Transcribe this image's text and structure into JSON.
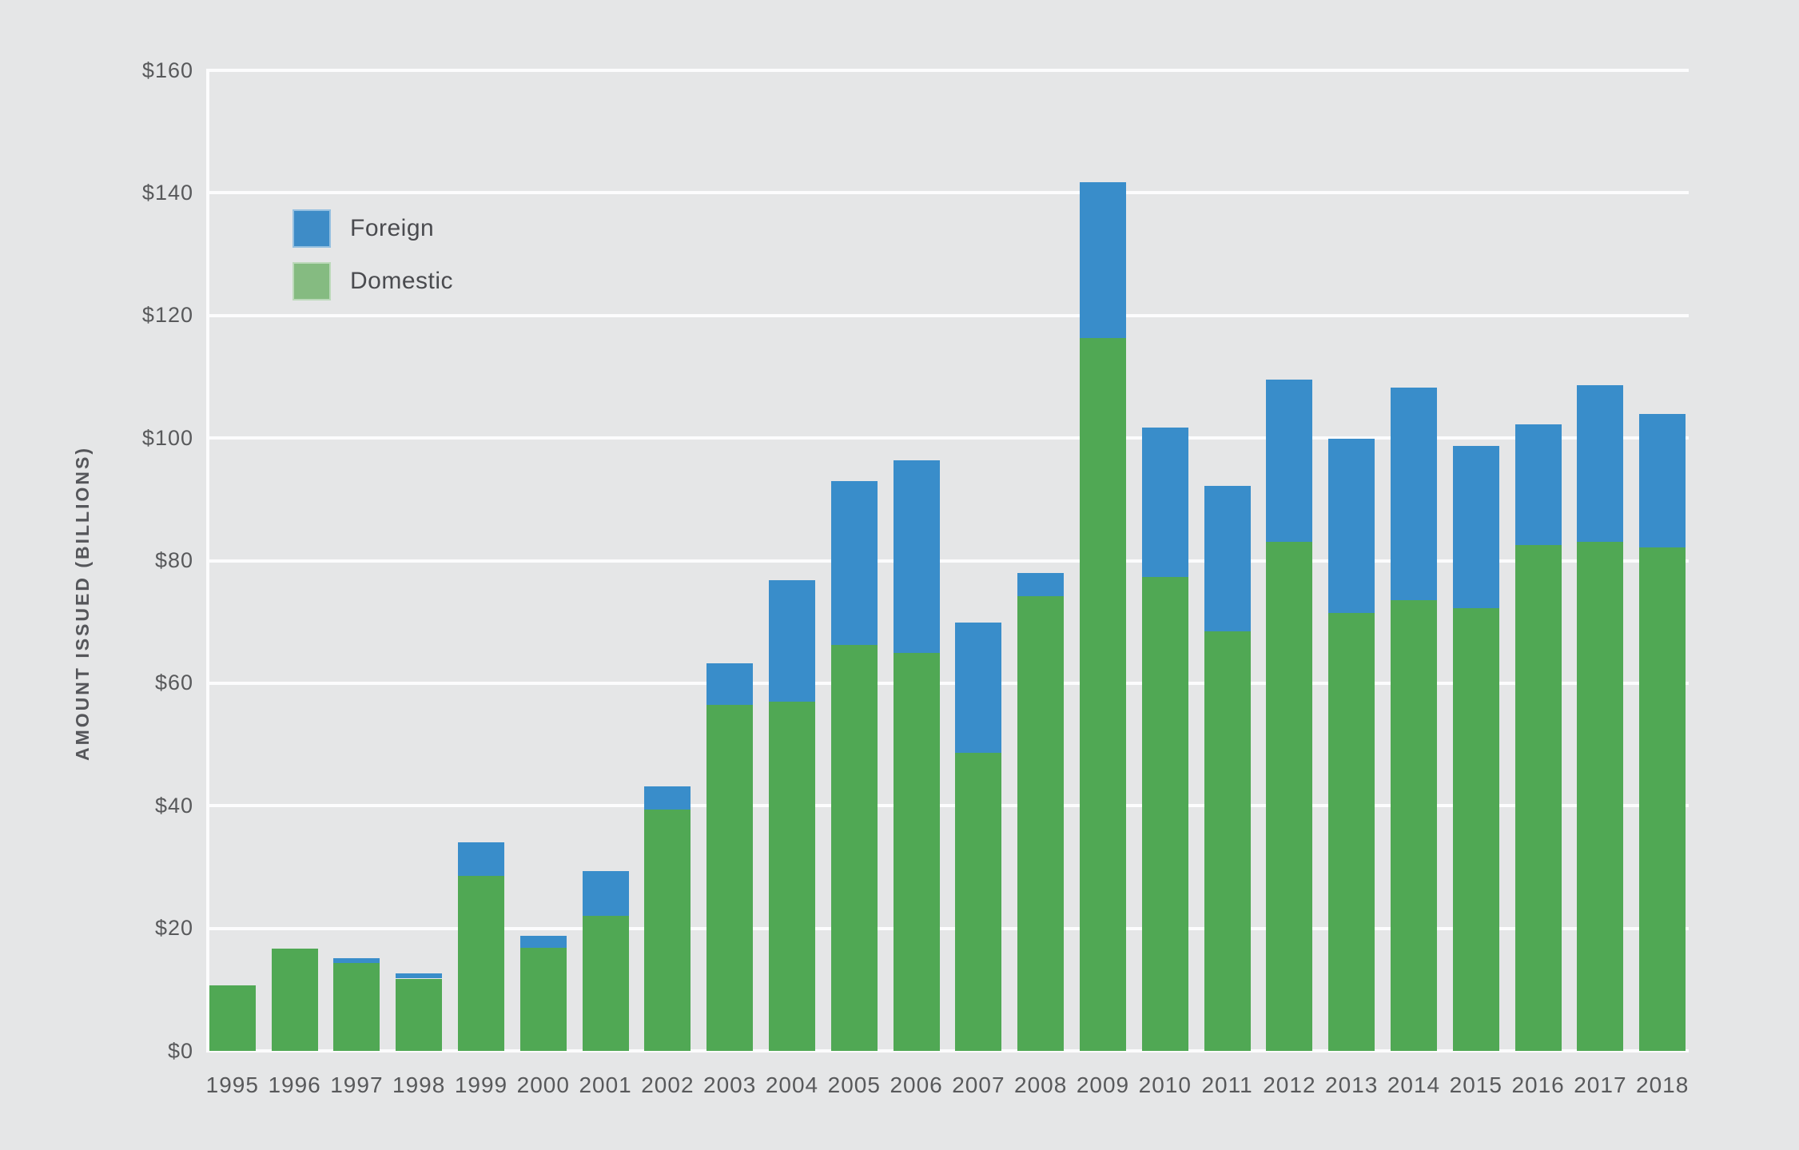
{
  "colors": {
    "background": "#E5E6E7",
    "gridline": "#FCFCFD",
    "text": "#58595B",
    "foreign_bar": "#398DCA",
    "domestic_bar": "#50A854",
    "legend_foreign_swatch": "#3E8CC7",
    "legend_domestic_swatch": "#85BB81"
  },
  "chart_data": {
    "type": "bar",
    "stacked": true,
    "title": "",
    "xlabel": "",
    "ylabel": "AMOUNT ISSUED (BILLIONS)",
    "ylim": [
      0,
      160
    ],
    "ytick_step": 20,
    "ytick_prefix": "$",
    "ytick_labels": [
      "$0",
      "$20",
      "$40",
      "$60",
      "$80",
      "$100",
      "$120",
      "$140",
      "$160"
    ],
    "grid": true,
    "legend_position": "top-left-inside",
    "categories": [
      "1995",
      "1996",
      "1997",
      "1998",
      "1999",
      "2000",
      "2001",
      "2002",
      "2003",
      "2004",
      "2005",
      "2006",
      "2007",
      "2008",
      "2009",
      "2010",
      "2011",
      "2012",
      "2013",
      "2014",
      "2015",
      "2016",
      "2017",
      "2018"
    ],
    "series": [
      {
        "name": "Domestic",
        "color": "#50A854",
        "values": [
          10.7,
          16.7,
          14.3,
          11.8,
          28.6,
          16.8,
          22.0,
          39.4,
          56.4,
          57.0,
          66.3,
          64.9,
          48.6,
          74.2,
          116.3,
          77.3,
          68.4,
          83.0,
          71.5,
          73.5,
          72.3,
          82.5,
          83.1,
          82.1
        ]
      },
      {
        "name": "Foreign",
        "color": "#398DCA",
        "values": [
          0,
          0,
          0.8,
          0.9,
          5.4,
          2.0,
          7.4,
          3.8,
          6.9,
          19.8,
          26.7,
          31.5,
          21.3,
          3.8,
          25.4,
          24.4,
          23.8,
          26.5,
          28.4,
          34.7,
          26.4,
          19.7,
          25.5,
          21.8
        ]
      }
    ],
    "totals": [
      10.7,
      16.7,
      15.1,
      12.7,
      34.0,
      18.8,
      29.4,
      43.2,
      63.3,
      76.8,
      93.0,
      96.4,
      69.9,
      78.0,
      141.7,
      101.7,
      92.2,
      109.5,
      99.9,
      108.2,
      98.7,
      102.2,
      108.6,
      103.9
    ],
    "legend": {
      "items": [
        {
          "label": "Foreign",
          "color": "#3E8CC7"
        },
        {
          "label": "Domestic",
          "color": "#85BB81"
        }
      ]
    }
  }
}
